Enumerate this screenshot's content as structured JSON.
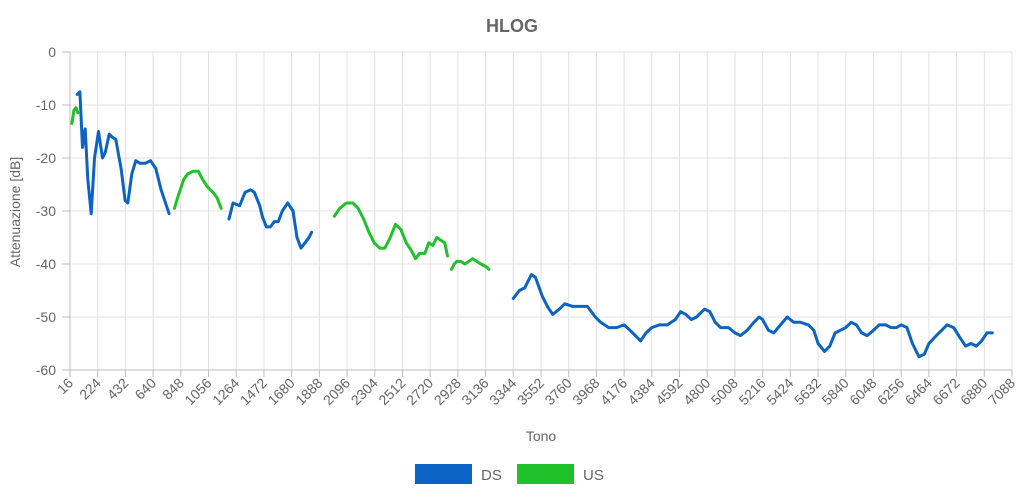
{
  "chart_data": {
    "type": "line",
    "title": "HLOG",
    "xlabel": "Tono",
    "ylabel": "Attenuazione [dB]",
    "xlim": [
      16,
      7088
    ],
    "ylim": [
      -60,
      0
    ],
    "x_ticks": [
      "16",
      "224",
      "432",
      "640",
      "848",
      "1056",
      "1264",
      "1472",
      "1680",
      "1888",
      "2096",
      "2304",
      "2512",
      "2720",
      "2928",
      "3136",
      "3344",
      "3552",
      "3760",
      "3968",
      "4176",
      "4384",
      "4592",
      "4800",
      "5008",
      "5216",
      "5424",
      "5632",
      "5840",
      "6048",
      "6256",
      "6464",
      "6672",
      "6880",
      "7088"
    ],
    "y_ticks": [
      "0",
      "-10",
      "-20",
      "-30",
      "-40",
      "-50",
      "-60"
    ],
    "grid": true,
    "legend_position": "bottom",
    "series": [
      {
        "name": "DS",
        "color": "#0b63c4",
        "segments": [
          [
            [
              70,
              -8
            ],
            [
              90,
              -7.5
            ],
            [
              110,
              -18
            ],
            [
              130,
              -14.5
            ],
            [
              150,
              -24
            ],
            [
              175,
              -30.5
            ],
            [
              200,
              -20
            ],
            [
              230,
              -15
            ],
            [
              260,
              -20
            ],
            [
              280,
              -19
            ],
            [
              310,
              -15.5
            ],
            [
              330,
              -16
            ],
            [
              360,
              -16.5
            ],
            [
              400,
              -22
            ],
            [
              430,
              -28
            ],
            [
              450,
              -28.5
            ],
            [
              480,
              -23
            ],
            [
              510,
              -20.5
            ],
            [
              540,
              -21
            ],
            [
              580,
              -21
            ],
            [
              620,
              -20.5
            ],
            [
              660,
              -22
            ],
            [
              700,
              -26
            ],
            [
              740,
              -29
            ],
            [
              760,
              -30.5
            ]
          ],
          [
            [
              1210,
              -31.5
            ],
            [
              1240,
              -28.5
            ],
            [
              1290,
              -29
            ],
            [
              1330,
              -26.5
            ],
            [
              1370,
              -26
            ],
            [
              1400,
              -26.5
            ],
            [
              1440,
              -29
            ],
            [
              1460,
              -31
            ],
            [
              1490,
              -33
            ],
            [
              1520,
              -33
            ],
            [
              1550,
              -32
            ],
            [
              1580,
              -32
            ],
            [
              1610,
              -30
            ],
            [
              1650,
              -28.5
            ],
            [
              1690,
              -30
            ],
            [
              1720,
              -35
            ],
            [
              1750,
              -37
            ],
            [
              1780,
              -36
            ],
            [
              1810,
              -35
            ],
            [
              1830,
              -34
            ]
          ],
          [
            [
              3344,
              -46.5
            ],
            [
              3390,
              -45
            ],
            [
              3430,
              -44.5
            ],
            [
              3480,
              -42
            ],
            [
              3510,
              -42.5
            ],
            [
              3560,
              -46
            ],
            [
              3600,
              -48
            ],
            [
              3640,
              -49.5
            ],
            [
              3690,
              -48.5
            ],
            [
              3730,
              -47.5
            ],
            [
              3790,
              -48
            ],
            [
              3840,
              -48
            ],
            [
              3900,
              -48
            ],
            [
              3960,
              -50
            ],
            [
              4000,
              -51
            ],
            [
              4060,
              -52
            ],
            [
              4120,
              -52
            ],
            [
              4176,
              -51.5
            ],
            [
              4220,
              -52.5
            ],
            [
              4260,
              -53.5
            ],
            [
              4300,
              -54.5
            ],
            [
              4340,
              -53
            ],
            [
              4384,
              -52
            ],
            [
              4440,
              -51.5
            ],
            [
              4500,
              -51.5
            ],
            [
              4560,
              -50.5
            ],
            [
              4600,
              -49
            ],
            [
              4640,
              -49.5
            ],
            [
              4680,
              -50.5
            ],
            [
              4720,
              -50
            ],
            [
              4780,
              -48.5
            ],
            [
              4820,
              -49
            ],
            [
              4860,
              -51
            ],
            [
              4900,
              -52
            ],
            [
              4960,
              -52
            ],
            [
              5008,
              -53
            ],
            [
              5050,
              -53.5
            ],
            [
              5100,
              -52.5
            ],
            [
              5150,
              -51
            ],
            [
              5190,
              -50
            ],
            [
              5216,
              -50.5
            ],
            [
              5260,
              -52.5
            ],
            [
              5300,
              -53
            ],
            [
              5350,
              -51.5
            ],
            [
              5400,
              -50
            ],
            [
              5450,
              -51
            ],
            [
              5500,
              -51
            ],
            [
              5560,
              -51.5
            ],
            [
              5600,
              -52.5
            ],
            [
              5632,
              -55
            ],
            [
              5680,
              -56.5
            ],
            [
              5720,
              -55.5
            ],
            [
              5760,
              -53
            ],
            [
              5800,
              -52.5
            ],
            [
              5840,
              -52
            ],
            [
              5880,
              -51
            ],
            [
              5920,
              -51.5
            ],
            [
              5960,
              -53
            ],
            [
              6000,
              -53.5
            ],
            [
              6048,
              -52.5
            ],
            [
              6090,
              -51.5
            ],
            [
              6140,
              -51.5
            ],
            [
              6180,
              -52
            ],
            [
              6220,
              -52
            ],
            [
              6256,
              -51.5
            ],
            [
              6300,
              -52
            ],
            [
              6340,
              -55
            ],
            [
              6390,
              -57.5
            ],
            [
              6430,
              -57
            ],
            [
              6464,
              -55
            ],
            [
              6520,
              -53.5
            ],
            [
              6560,
              -52.5
            ],
            [
              6600,
              -51.5
            ],
            [
              6650,
              -52
            ],
            [
              6700,
              -54
            ],
            [
              6740,
              -55.5
            ],
            [
              6780,
              -55
            ],
            [
              6820,
              -55.5
            ],
            [
              6860,
              -54.5
            ],
            [
              6900,
              -53
            ],
            [
              6940,
              -53
            ]
          ]
        ]
      },
      {
        "name": "US",
        "color": "#1fc22a",
        "segments": [
          [
            [
              30,
              -13.5
            ],
            [
              45,
              -11
            ],
            [
              60,
              -10.5
            ],
            [
              75,
              -11.5
            ]
          ],
          [
            [
              800,
              -29.5
            ],
            [
              830,
              -27
            ],
            [
              870,
              -24
            ],
            [
              900,
              -23
            ],
            [
              940,
              -22.5
            ],
            [
              980,
              -22.5
            ],
            [
              1010,
              -24
            ],
            [
              1050,
              -25.5
            ],
            [
              1090,
              -26.5
            ],
            [
              1120,
              -27.5
            ],
            [
              1150,
              -29.5
            ]
          ],
          [
            [
              2000,
              -31
            ],
            [
              2040,
              -29.5
            ],
            [
              2090,
              -28.5
            ],
            [
              2140,
              -28.5
            ],
            [
              2180,
              -29.5
            ],
            [
              2220,
              -31.5
            ],
            [
              2260,
              -34
            ],
            [
              2300,
              -36
            ],
            [
              2340,
              -37
            ],
            [
              2380,
              -37
            ],
            [
              2420,
              -35
            ],
            [
              2460,
              -32.5
            ],
            [
              2500,
              -33.5
            ],
            [
              2540,
              -36
            ],
            [
              2580,
              -37.5
            ],
            [
              2610,
              -39
            ],
            [
              2640,
              -38
            ],
            [
              2680,
              -38
            ],
            [
              2710,
              -36
            ],
            [
              2740,
              -36.5
            ],
            [
              2770,
              -35
            ],
            [
              2800,
              -35.5
            ],
            [
              2830,
              -36
            ],
            [
              2850,
              -38.5
            ]
          ],
          [
            [
              2880,
              -41
            ],
            [
              2900,
              -40
            ],
            [
              2920,
              -39.5
            ],
            [
              2950,
              -39.5
            ],
            [
              2980,
              -40
            ],
            [
              3010,
              -39.5
            ],
            [
              3040,
              -39
            ],
            [
              3070,
              -39.5
            ],
            [
              3100,
              -40
            ],
            [
              3140,
              -40.5
            ],
            [
              3160,
              -41
            ]
          ]
        ]
      }
    ]
  }
}
